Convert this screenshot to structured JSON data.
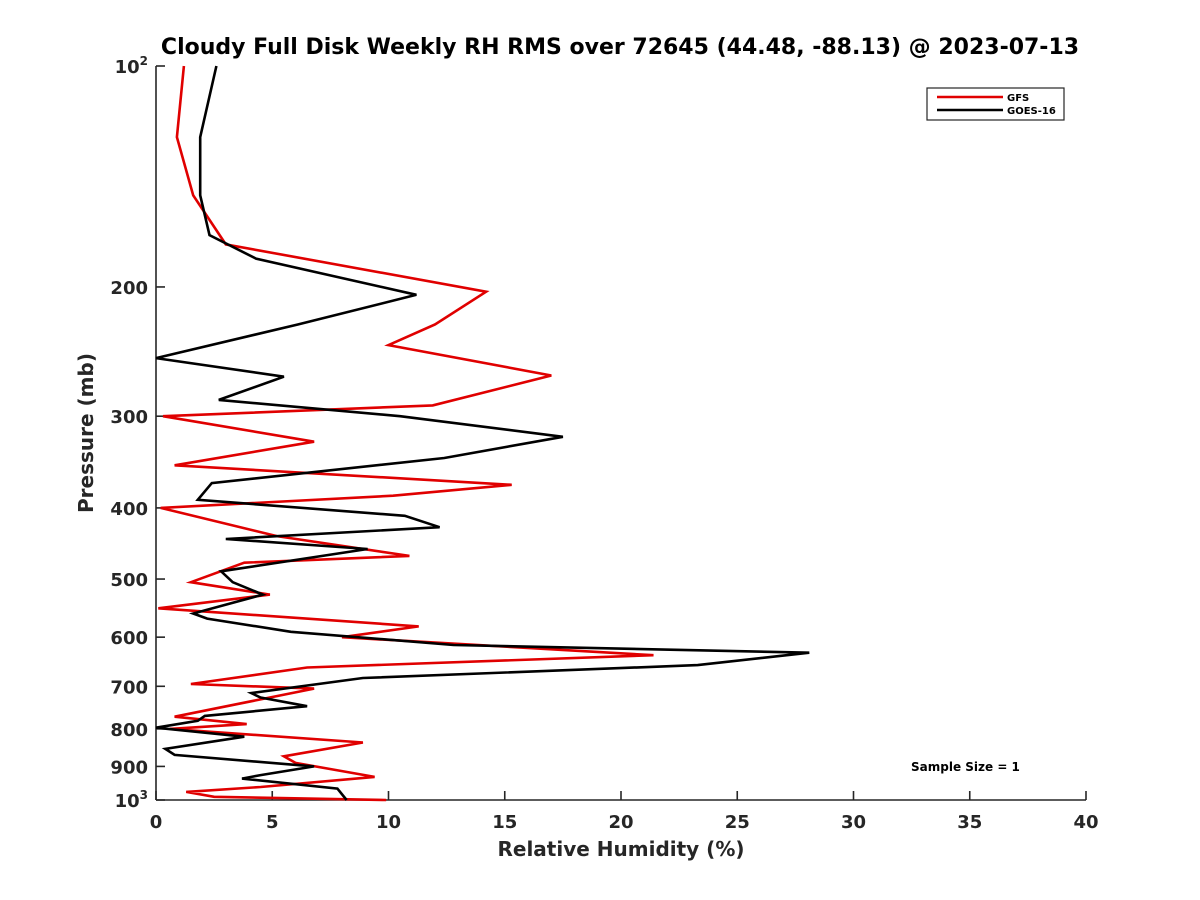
{
  "chart_data": {
    "type": "line",
    "title": "Cloudy Full Disk Weekly RH RMS over 72645 (44.48, -88.13) @ 2023-07-13",
    "xlabel": "Relative Humidity (%)",
    "ylabel": "Pressure (mb)",
    "xlim": [
      0,
      40
    ],
    "ylim": [
      100,
      1000
    ],
    "y_scale": "log",
    "y_reversed": true,
    "x_ticks": [
      "0",
      "5",
      "10",
      "15",
      "20",
      "25",
      "30",
      "35",
      "40"
    ],
    "y_ticks": [
      {
        "value": 100,
        "base": "10",
        "exp": "2"
      },
      {
        "value": 200,
        "label": "200"
      },
      {
        "value": 300,
        "label": "300"
      },
      {
        "value": 400,
        "label": "400"
      },
      {
        "value": 500,
        "label": "500"
      },
      {
        "value": 600,
        "label": "600"
      },
      {
        "value": 700,
        "label": "700"
      },
      {
        "value": 800,
        "label": "800"
      },
      {
        "value": 900,
        "label": "900"
      },
      {
        "value": 1000,
        "base": "10",
        "exp": "3"
      }
    ],
    "legend_position": "top-right",
    "grid": false,
    "annotation": "Sample Size = 1",
    "series": [
      {
        "name": "GFS",
        "color": "#e00000",
        "points": [
          [
            1.2,
            100
          ],
          [
            0.9,
            125
          ],
          [
            1.6,
            150
          ],
          [
            3.0,
            175
          ],
          [
            14.2,
            203
          ],
          [
            12.0,
            225
          ],
          [
            10.0,
            240
          ],
          [
            17.0,
            264
          ],
          [
            11.9,
            290
          ],
          [
            0.3,
            300
          ],
          [
            6.8,
            325
          ],
          [
            0.8,
            350
          ],
          [
            15.3,
            372
          ],
          [
            10.2,
            385
          ],
          [
            0.2,
            400
          ],
          [
            5.2,
            437
          ],
          [
            10.9,
            465
          ],
          [
            3.8,
            475
          ],
          [
            1.5,
            505
          ],
          [
            4.9,
            525
          ],
          [
            0.1,
            548
          ],
          [
            11.3,
            580
          ],
          [
            8.0,
            600
          ],
          [
            21.4,
            635
          ],
          [
            6.5,
            660
          ],
          [
            1.5,
            695
          ],
          [
            6.8,
            705
          ],
          [
            0.8,
            770
          ],
          [
            3.9,
            788
          ],
          [
            0.6,
            800
          ],
          [
            8.9,
            835
          ],
          [
            5.5,
            872
          ],
          [
            6.0,
            890
          ],
          [
            7.7,
            910
          ],
          [
            9.4,
            930
          ],
          [
            4.5,
            960
          ],
          [
            1.3,
            975
          ],
          [
            2.5,
            990
          ],
          [
            9.9,
            1000
          ]
        ]
      },
      {
        "name": "GOES-16",
        "color": "#000000",
        "points": [
          [
            2.6,
            100
          ],
          [
            1.9,
            125
          ],
          [
            1.9,
            150
          ],
          [
            2.3,
            170
          ],
          [
            4.3,
            183
          ],
          [
            11.2,
            205
          ],
          [
            6.1,
            225
          ],
          [
            0.0,
            250
          ],
          [
            5.5,
            265
          ],
          [
            2.7,
            285
          ],
          [
            10.5,
            300
          ],
          [
            17.5,
            320
          ],
          [
            12.4,
            342
          ],
          [
            2.4,
            370
          ],
          [
            1.8,
            390
          ],
          [
            10.7,
            410
          ],
          [
            12.2,
            425
          ],
          [
            3.0,
            441
          ],
          [
            9.1,
            455
          ],
          [
            2.8,
            488
          ],
          [
            3.3,
            505
          ],
          [
            4.6,
            525
          ],
          [
            1.6,
            557
          ],
          [
            2.2,
            566
          ],
          [
            5.8,
            590
          ],
          [
            12.8,
            615
          ],
          [
            28.1,
            630
          ],
          [
            23.3,
            655
          ],
          [
            8.9,
            682
          ],
          [
            4.1,
            715
          ],
          [
            4.5,
            725
          ],
          [
            6.5,
            745
          ],
          [
            2.1,
            768
          ],
          [
            1.8,
            780
          ],
          [
            0.0,
            797
          ],
          [
            3.8,
            820
          ],
          [
            0.4,
            852
          ],
          [
            0.8,
            868
          ],
          [
            6.8,
            900
          ],
          [
            4.5,
            925
          ],
          [
            3.7,
            935
          ],
          [
            7.8,
            965
          ],
          [
            8.2,
            1000
          ]
        ]
      }
    ]
  }
}
